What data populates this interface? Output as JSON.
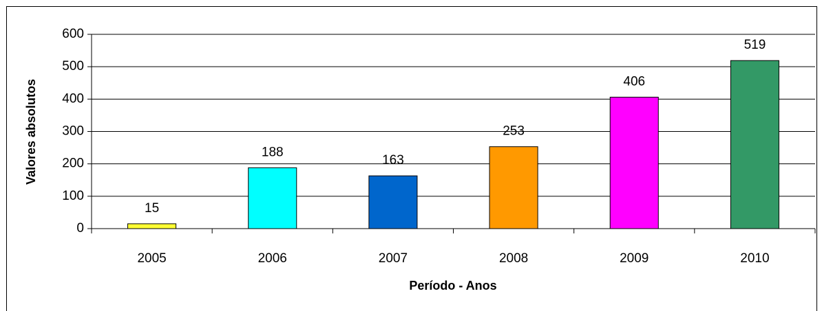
{
  "chart_data": {
    "type": "bar",
    "x_label": "Período - Anos",
    "y_label": "Valores absolutos",
    "categories": [
      "2005",
      "2006",
      "2007",
      "2008",
      "2009",
      "2010"
    ],
    "values": [
      15,
      188,
      163,
      253,
      406,
      519
    ],
    "colors": [
      "#ffff33",
      "#00ffff",
      "#0066cc",
      "#ff9900",
      "#ff00ff",
      "#339966"
    ],
    "ylim": [
      0,
      600
    ],
    "yticks": [
      0,
      100,
      200,
      300,
      400,
      500,
      600
    ],
    "grid": true
  }
}
